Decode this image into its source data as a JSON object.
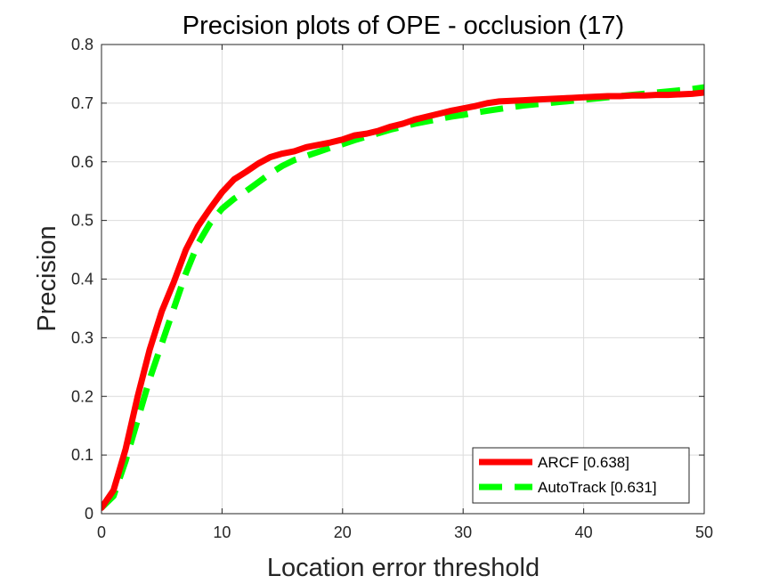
{
  "chart_data": {
    "type": "line",
    "title": "Precision plots of OPE - occlusion (17)",
    "xlabel": "Location error threshold",
    "ylabel": "Precision",
    "xlim": [
      0,
      50
    ],
    "ylim": [
      0,
      0.8
    ],
    "xticks": [
      0,
      10,
      20,
      30,
      40,
      50
    ],
    "yticks": [
      0,
      0.1,
      0.2,
      0.3,
      0.4,
      0.5,
      0.6,
      0.7,
      0.8
    ],
    "grid": true,
    "legend_position": "bottom-right",
    "series": [
      {
        "name": "ARCF [0.638]",
        "color": "#ff0000",
        "style": "solid",
        "x": [
          0,
          1,
          2,
          3,
          4,
          5,
          6,
          7,
          8,
          9,
          10,
          11,
          12,
          13,
          14,
          15,
          16,
          17,
          18,
          19,
          20,
          21,
          22,
          23,
          24,
          25,
          26,
          27,
          28,
          29,
          30,
          31,
          32,
          33,
          34,
          35,
          36,
          37,
          38,
          39,
          40,
          41,
          42,
          43,
          44,
          45,
          46,
          47,
          48,
          49,
          50
        ],
        "y": [
          0.01,
          0.04,
          0.11,
          0.2,
          0.28,
          0.345,
          0.395,
          0.45,
          0.49,
          0.52,
          0.548,
          0.57,
          0.583,
          0.597,
          0.608,
          0.614,
          0.618,
          0.625,
          0.629,
          0.633,
          0.638,
          0.645,
          0.648,
          0.653,
          0.66,
          0.665,
          0.672,
          0.677,
          0.682,
          0.687,
          0.691,
          0.695,
          0.7,
          0.703,
          0.704,
          0.705,
          0.706,
          0.707,
          0.708,
          0.709,
          0.71,
          0.711,
          0.712,
          0.712,
          0.713,
          0.713,
          0.714,
          0.714,
          0.715,
          0.716,
          0.718
        ]
      },
      {
        "name": "AutoTrack [0.631]",
        "color": "#00ff00",
        "style": "dashed",
        "x": [
          0,
          1,
          2,
          3,
          4,
          5,
          6,
          7,
          8,
          9,
          10,
          11,
          12,
          13,
          14,
          15,
          16,
          17,
          18,
          19,
          20,
          21,
          22,
          23,
          24,
          25,
          26,
          27,
          28,
          29,
          30,
          31,
          32,
          33,
          34,
          35,
          36,
          37,
          38,
          39,
          40,
          41,
          42,
          43,
          44,
          45,
          46,
          47,
          48,
          49,
          50
        ],
        "y": [
          0.01,
          0.03,
          0.09,
          0.16,
          0.23,
          0.29,
          0.35,
          0.41,
          0.46,
          0.495,
          0.52,
          0.537,
          0.55,
          0.565,
          0.58,
          0.593,
          0.603,
          0.61,
          0.617,
          0.624,
          0.63,
          0.637,
          0.643,
          0.649,
          0.655,
          0.66,
          0.665,
          0.669,
          0.673,
          0.677,
          0.68,
          0.684,
          0.687,
          0.69,
          0.693,
          0.696,
          0.698,
          0.7,
          0.702,
          0.704,
          0.706,
          0.708,
          0.71,
          0.712,
          0.714,
          0.716,
          0.718,
          0.72,
          0.722,
          0.724,
          0.727
        ]
      }
    ]
  }
}
